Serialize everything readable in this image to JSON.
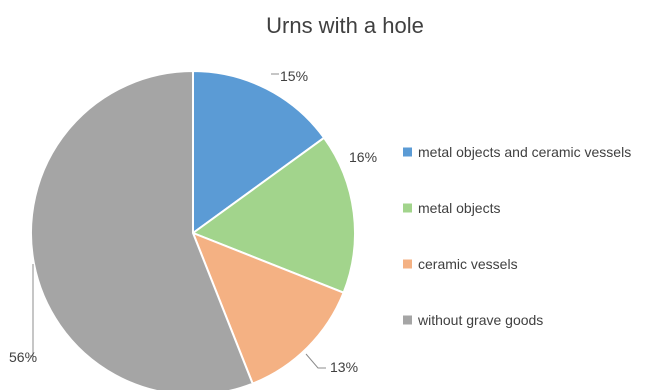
{
  "chart_data": {
    "type": "pie",
    "title": "Urns with a hole",
    "categories": [
      "metal objects and ceramic vessels",
      "metal objects",
      "ceramic vessels",
      "without grave goods"
    ],
    "values": [
      15,
      16,
      13,
      56
    ],
    "data_labels": [
      "15%",
      "16%",
      "13%",
      "56%"
    ],
    "colors": [
      "#5b9bd5",
      "#a2d48c",
      "#f4b183",
      "#a5a5a5"
    ],
    "legend_position": "right",
    "start_angle_degrees": 0,
    "direction": "clockwise"
  }
}
